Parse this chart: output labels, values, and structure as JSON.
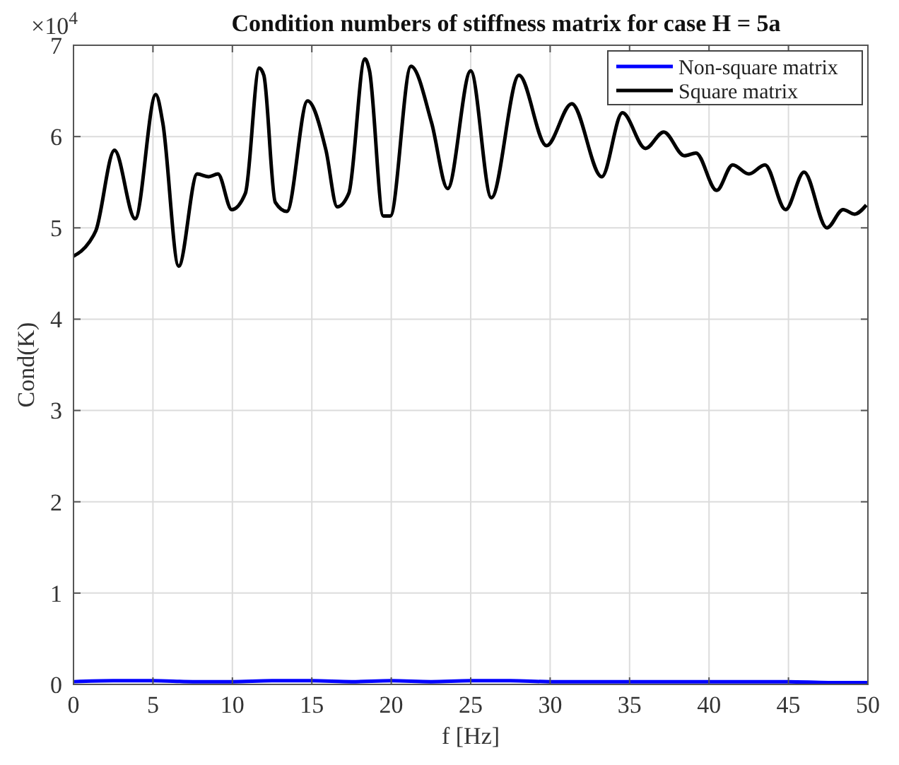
{
  "chart_data": {
    "type": "line",
    "title": "Condition numbers of stiffness matrix for case H = 5a",
    "xlabel": "f [Hz]",
    "ylabel": "Cond(K)",
    "annotations": [
      "×10$^{4}$"
    ],
    "xlim": [
      0,
      50
    ],
    "xticks": [
      0,
      5,
      10,
      15,
      20,
      25,
      30,
      35,
      40,
      45,
      50
    ],
    "ylim": [
      0,
      7
    ],
    "yticks": [
      0,
      1,
      2,
      3,
      4,
      5,
      6,
      7
    ],
    "grid": true,
    "legend": "top right",
    "line_style": "solid",
    "marker": "none",
    "series": [
      {
        "name": "Non-square matrix",
        "color": "#0000ff",
        "x": [
          0,
          2.5,
          5,
          7.5,
          10,
          12.5,
          15,
          17.5,
          20,
          22.5,
          25,
          27.5,
          30,
          32.5,
          35,
          37.5,
          40,
          42.5,
          45,
          47.5,
          50
        ],
        "values": [
          0.03,
          0.04,
          0.04,
          0.03,
          0.03,
          0.04,
          0.04,
          0.03,
          0.04,
          0.03,
          0.04,
          0.04,
          0.03,
          0.03,
          0.03,
          0.03,
          0.03,
          0.03,
          0.03,
          0.02,
          0.02
        ]
      },
      {
        "name": "Square matrix",
        "color": "#000000",
        "x": [
          0,
          0.98,
          1.41,
          2.58,
          3.88,
          5.18,
          5.62,
          6.62,
          7.79,
          8.51,
          9.09,
          9.96,
          10.82,
          11.69,
          11.98,
          12.7,
          13.43,
          14.73,
          15.89,
          16.6,
          17.33,
          18.34,
          18.63,
          19.5,
          19.94,
          21.24,
          22.54,
          23.55,
          25.0,
          26.3,
          28.04,
          29.77,
          31.36,
          33.25,
          34.55,
          36.0,
          37.15,
          38.45,
          39.18,
          40.48,
          41.49,
          42.51,
          43.52,
          44.82,
          45.98,
          47.42,
          48.44,
          49.16,
          49.9
        ],
        "values": [
          4.69,
          4.84,
          4.97,
          5.85,
          5.1,
          6.46,
          6.15,
          4.58,
          5.59,
          5.56,
          5.59,
          5.2,
          5.38,
          6.75,
          6.67,
          5.28,
          5.18,
          6.39,
          5.85,
          5.23,
          5.38,
          6.85,
          6.72,
          5.13,
          5.13,
          6.77,
          6.15,
          5.43,
          6.72,
          5.33,
          6.67,
          5.9,
          6.36,
          5.56,
          6.26,
          5.87,
          6.05,
          5.79,
          5.82,
          5.41,
          5.69,
          5.59,
          5.69,
          5.2,
          5.61,
          5.0,
          5.2,
          5.15,
          5.25
        ]
      }
    ]
  }
}
